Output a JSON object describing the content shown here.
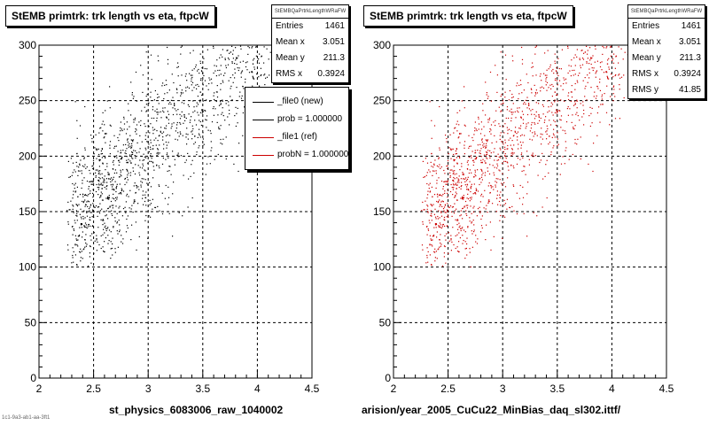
{
  "chart_data": [
    {
      "type": "scatter",
      "title": "StEMB primtrk: trk length vs eta, ftpcW",
      "xlabel": "st_physics_6083006_raw_1040002",
      "ylabel": "",
      "xlim": [
        2,
        4.5
      ],
      "ylim": [
        0,
        300
      ],
      "x_ticks": [
        "2",
        "2.5",
        "3",
        "3.5",
        "4",
        "4.5"
      ],
      "y_ticks": [
        "0",
        "50",
        "100",
        "150",
        "200",
        "250",
        "300"
      ],
      "grid": true,
      "marker_color": "#000000",
      "points_description_count": 1461,
      "stats": {
        "name": "StEMBQaPrtrkLengthWRaFW",
        "rows": [
          {
            "key": "Entries",
            "value": "1461"
          },
          {
            "key": "Mean x",
            "value": "3.051"
          },
          {
            "key": "Mean y",
            "value": "211.3"
          },
          {
            "key": "RMS x",
            "value": "0.3924"
          }
        ]
      },
      "legend": {
        "placement": "top-right",
        "entries": [
          {
            "label": "_file0 (new)",
            "color": "#000000"
          },
          {
            "label": "prob = 1.000000",
            "color": "#000000"
          },
          {
            "label": "_file1 (ref)",
            "color": "#cc0000"
          },
          {
            "label": "probN = 1.000000",
            "color": "#cc0000"
          }
        ]
      },
      "bottom_note": "1c1-9a3-ab1-aa-3ft1"
    },
    {
      "type": "scatter",
      "title": "StEMB primtrk: trk length vs eta, ftpcW",
      "xlabel": "arision/year_2005_CuCu22_MinBias_daq_sl302.ittf/",
      "ylabel": "",
      "xlim": [
        2,
        4.5
      ],
      "ylim": [
        0,
        300
      ],
      "x_ticks": [
        "2",
        "2.5",
        "3",
        "3.5",
        "4",
        "4.5"
      ],
      "y_ticks": [
        "0",
        "50",
        "100",
        "150",
        "200",
        "250",
        "300"
      ],
      "grid": true,
      "marker_color": "#cc0000",
      "points_description_count": 1461,
      "stats": {
        "name": "StEMBQaPrtrkLengthWRaFW",
        "rows": [
          {
            "key": "Entries",
            "value": "1461"
          },
          {
            "key": "Mean x",
            "value": "3.051"
          },
          {
            "key": "Mean y",
            "value": "211.3"
          },
          {
            "key": "RMS x",
            "value": "0.3924"
          },
          {
            "key": "RMS y",
            "value": "41.85"
          }
        ]
      }
    }
  ]
}
